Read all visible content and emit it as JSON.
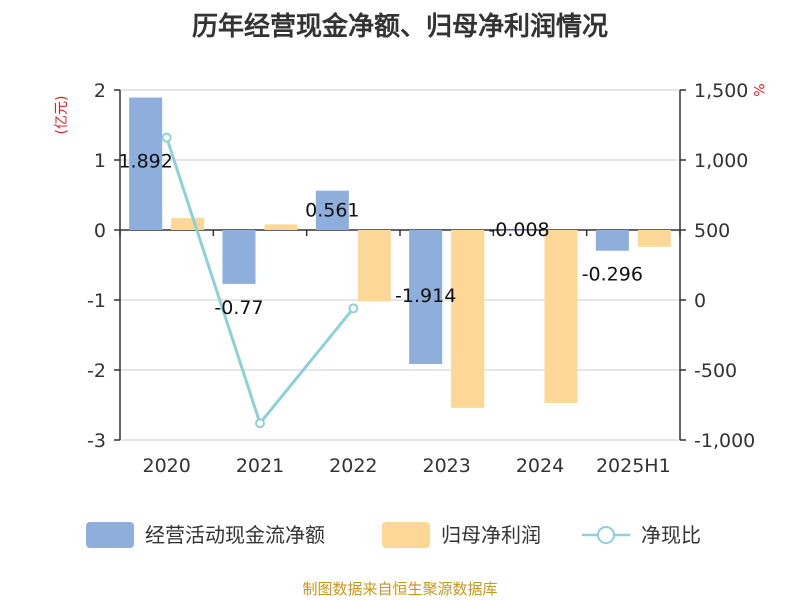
{
  "chart_data": {
    "type": "bar",
    "title": "历年经营现金净额、归母净利润情况",
    "categories": [
      "2020",
      "2021",
      "2022",
      "2023",
      "2024",
      "2025H1"
    ],
    "series": [
      {
        "name": "经营活动现金流净额",
        "type": "bar",
        "axis": "left",
        "color": "#8eaedb",
        "values": [
          1.892,
          -0.77,
          0.561,
          -1.914,
          -0.008,
          -0.296
        ],
        "labels": [
          "1.892",
          "-0.77",
          "0.561",
          "-1.914",
          "-0.008",
          "-0.296"
        ]
      },
      {
        "name": "归母净利润",
        "type": "bar",
        "axis": "left",
        "color": "#fdd795",
        "values": [
          0.17,
          0.08,
          -1.02,
          -2.54,
          -2.47,
          -0.24
        ]
      },
      {
        "name": "净现比",
        "type": "line",
        "axis": "right",
        "color": "#8dd1d8",
        "values": [
          1160,
          -880,
          -60,
          null,
          null,
          null
        ]
      }
    ],
    "y_left": {
      "unit": "(亿元)",
      "ylim": [
        -3,
        2
      ],
      "ticks": [
        "2",
        "1",
        "0",
        "-1",
        "-2",
        "-3"
      ]
    },
    "y_right": {
      "unit": "%",
      "ylim": [
        -1000,
        1500
      ],
      "ticks": [
        "1,500",
        "1,000",
        "500",
        "0",
        "-500",
        "-1,000"
      ]
    },
    "grid": true,
    "legend_position": "bottom"
  },
  "source": "制图数据来自恒生聚源数据库"
}
